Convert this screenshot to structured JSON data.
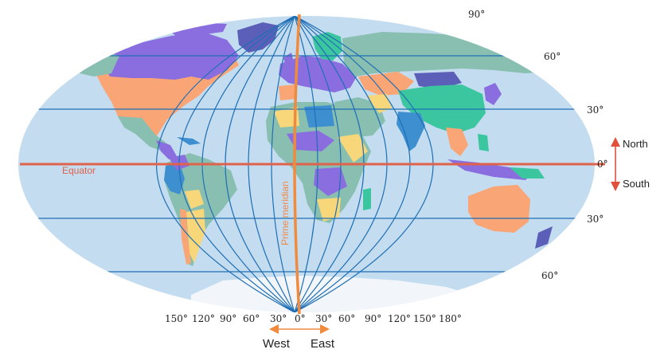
{
  "latitude_labels": {
    "n90": "90°",
    "n60": "60°",
    "n30": "30°",
    "eq": "0°",
    "s30": "30°",
    "s60": "60°"
  },
  "longitude_labels": [
    "150°",
    "120°",
    "90°",
    "60°",
    "30°",
    "0°",
    "30°",
    "60°",
    "90°",
    "120°",
    "150°",
    "180°"
  ],
  "equator_label": "Equator",
  "prime_meridian_label": "Prime meridian",
  "north_label": "North",
  "south_label": "South",
  "west_label": "West",
  "east_label": "East",
  "colors": {
    "ocean": "#c3dcef",
    "grid": "#1f6fb5",
    "equator": "#e0624a",
    "prime_meridian": "#f08a3e",
    "arrow_ns": "#e0503a",
    "arrow_ew": "#f08a3e",
    "land_teal": "#88bfb0",
    "land_purple": "#8a6ee0",
    "land_orange": "#f9a575",
    "land_yellow": "#f7d77a",
    "land_blue": "#3e8fd0",
    "land_green": "#3cc6a0",
    "antarctica": "#f2f6fa"
  }
}
